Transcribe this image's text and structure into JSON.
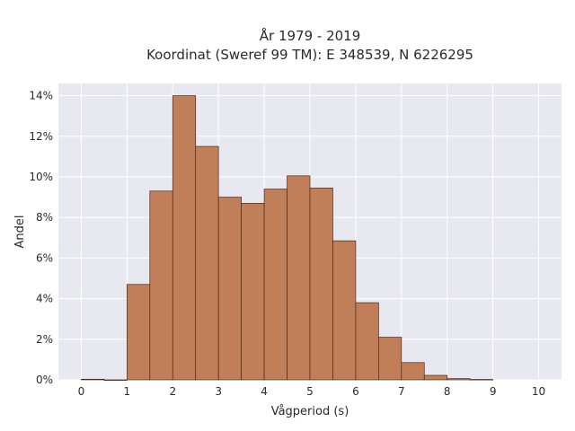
{
  "chart_data": {
    "type": "bar",
    "title_line1": "År 1979 - 2019",
    "title_line2": "Koordinat (Sweref 99 TM): E 348539, N 6226295",
    "xlabel": "Vågperiod (s)",
    "ylabel": "Andel",
    "xlim": [
      -0.5,
      10.5
    ],
    "ylim": [
      0,
      14.6
    ],
    "x_ticks": [
      0,
      1,
      2,
      3,
      4,
      5,
      6,
      7,
      8,
      9,
      10
    ],
    "y_ticks": [
      0,
      2,
      4,
      6,
      8,
      10,
      12,
      14
    ],
    "y_tick_labels": [
      "0%",
      "2%",
      "4%",
      "6%",
      "8%",
      "10%",
      "12%",
      "14%"
    ],
    "bin_width": 0.5,
    "bins": [
      {
        "x0": 0.0,
        "x1": 0.5,
        "value": 0.03
      },
      {
        "x0": 0.5,
        "x1": 1.0,
        "value": 0.0
      },
      {
        "x0": 1.0,
        "x1": 1.5,
        "value": 4.7
      },
      {
        "x0": 1.5,
        "x1": 2.0,
        "value": 9.3
      },
      {
        "x0": 2.0,
        "x1": 2.5,
        "value": 14.0
      },
      {
        "x0": 2.5,
        "x1": 3.0,
        "value": 11.5
      },
      {
        "x0": 3.0,
        "x1": 3.5,
        "value": 9.0
      },
      {
        "x0": 3.5,
        "x1": 4.0,
        "value": 8.7
      },
      {
        "x0": 4.0,
        "x1": 4.5,
        "value": 9.4
      },
      {
        "x0": 4.5,
        "x1": 5.0,
        "value": 10.05
      },
      {
        "x0": 5.0,
        "x1": 5.5,
        "value": 9.45
      },
      {
        "x0": 5.5,
        "x1": 6.0,
        "value": 6.85
      },
      {
        "x0": 6.0,
        "x1": 6.5,
        "value": 3.8
      },
      {
        "x0": 6.5,
        "x1": 7.0,
        "value": 2.1
      },
      {
        "x0": 7.0,
        "x1": 7.5,
        "value": 0.85
      },
      {
        "x0": 7.5,
        "x1": 8.0,
        "value": 0.22
      },
      {
        "x0": 8.0,
        "x1": 8.5,
        "value": 0.06
      },
      {
        "x0": 8.5,
        "x1": 9.0,
        "value": 0.02
      }
    ],
    "grid": true,
    "colors": {
      "bar_fill": "#c07f58",
      "bar_edge": "#4a2a18",
      "plot_bg": "#e8e8f0",
      "grid": "#ffffff"
    }
  }
}
